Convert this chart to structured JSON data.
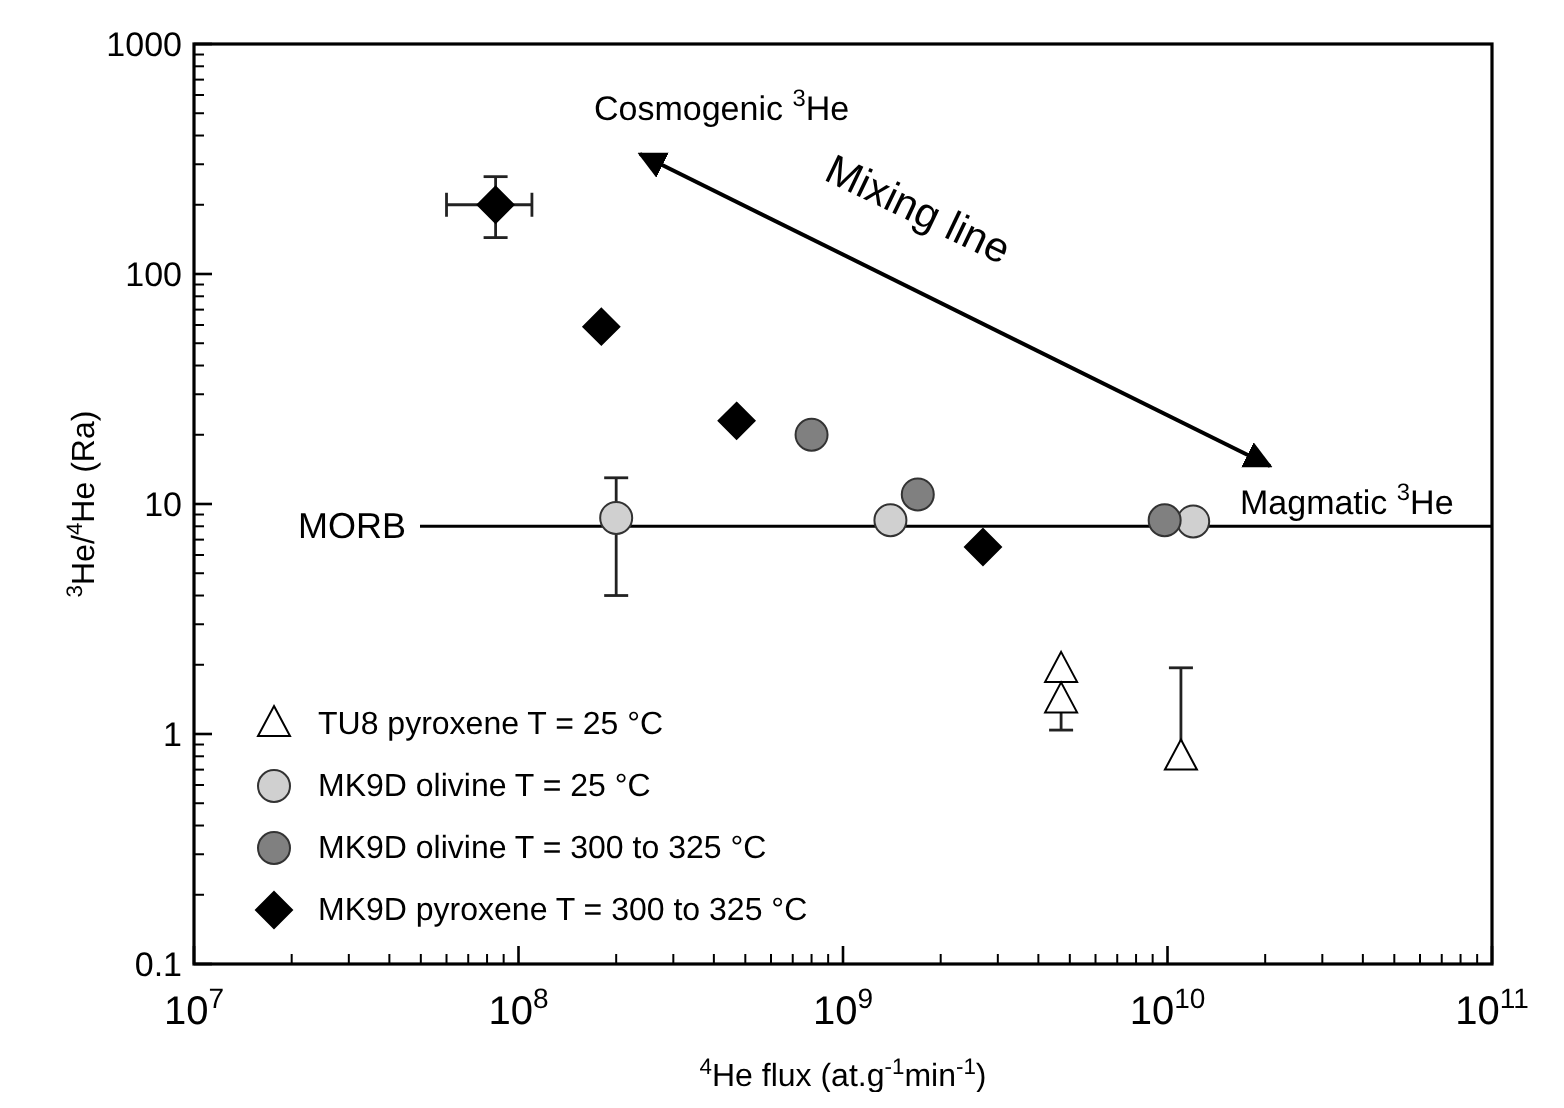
{
  "chart_data": {
    "type": "scatter",
    "xlabel": "$^{4}$He flux (at.g$^{-1}$min$^{-1}$)",
    "ylabel": "$^{3}$He/$^{4}$He (Ra)",
    "log": "xy",
    "xlim": [
      10000000,
      100000000000
    ],
    "xticks": [
      {
        "value": 10000000,
        "label": "10$^{7}$"
      },
      {
        "value": 100000000,
        "label": "10$^{8}$"
      },
      {
        "value": 1000000000,
        "label": "10$^{9}$"
      },
      {
        "value": 10000000000,
        "label": "10$^{10}$"
      },
      {
        "value": 100000000000,
        "label": "10$^{11}$"
      }
    ],
    "ylim": [
      0.1,
      1000
    ],
    "yticks": [
      0.1,
      1,
      10,
      100,
      1000
    ],
    "grid": false,
    "legend": "bottom left",
    "ref_lines": [
      {
        "axis": "y",
        "value": 8,
        "label": "MORB",
        "color": "#000000"
      }
    ],
    "annotations": [
      "Cosmogenic $^{3}$He",
      "Mixing line",
      "Magmatic $^{3}$He"
    ],
    "series": [
      {
        "name": "TU8 pyroxene T = 25 °C",
        "color": "#ffffff",
        "marker": "triangle",
        "x": [
          4700000000,
          4700000000,
          11000000000
        ],
        "values": [
          1.9,
          1.4,
          0.79
        ],
        "errors": [
          null,
          [
            1.04,
            1.4
          ],
          [
            0.79,
            1.94
          ]
        ]
      },
      {
        "name": "MK9D olivine T = 25 °C",
        "color": "#d0d0d0",
        "marker": "circle",
        "x": [
          200000000,
          1400000000,
          12000000000
        ],
        "values": [
          8.7,
          8.5,
          8.4
        ],
        "errors": [
          [
            4,
            13
          ],
          null,
          null
        ]
      },
      {
        "name": "MK9D olivine T = 300 to 325 °C",
        "color": "#808080",
        "marker": "circle",
        "x": [
          800000000,
          1700000000,
          9800000000
        ],
        "values": [
          20,
          11,
          8.5
        ]
      },
      {
        "name": "MK9D pyroxene T = 300 to 325 °C",
        "color": "#000000",
        "marker": "diamond",
        "x": [
          85000000,
          180000000,
          470000000,
          2700000000
        ],
        "values": [
          200,
          59,
          23,
          6.5
        ],
        "errors": [
          [
            144,
            265
          ],
          null,
          null,
          null
        ],
        "xerrors": [
          [
            60000000,
            110000000
          ],
          null,
          null,
          null
        ]
      }
    ]
  }
}
